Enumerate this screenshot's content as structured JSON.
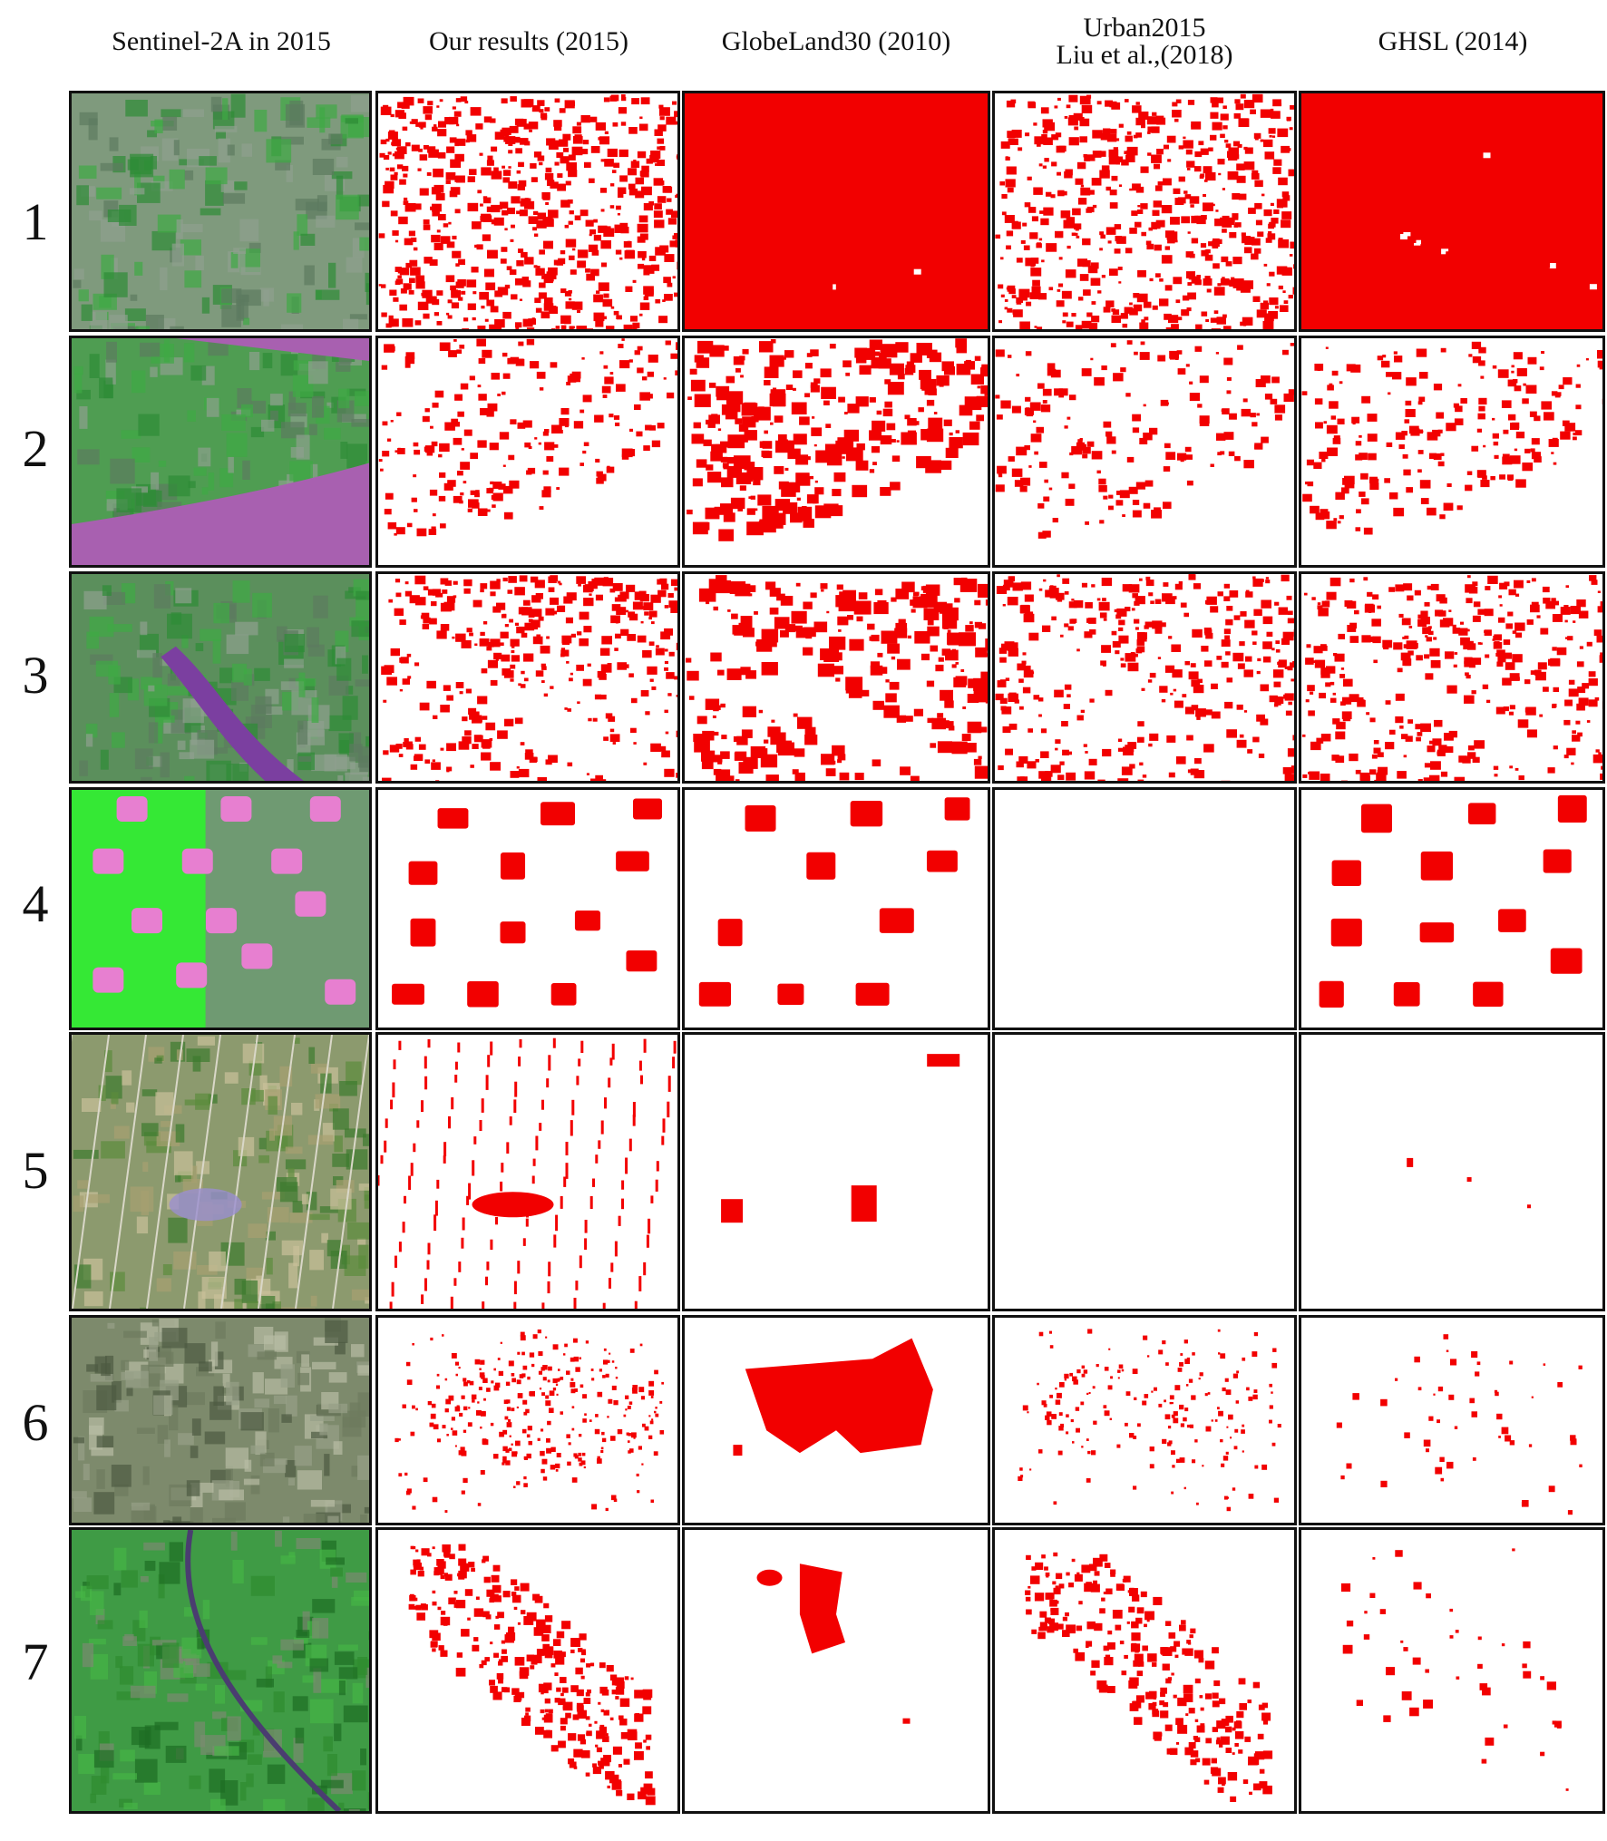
{
  "figure": {
    "column_headers": [
      "Sentinel-2A in 2015",
      "Our results (2015)",
      "GlobeLand30 (2010)",
      "Urban2015",
      "Liu et al.,(2018)",
      "GHSL (2014)"
    ],
    "row_labels": [
      "1",
      "2",
      "3",
      "4",
      "5",
      "6",
      "7"
    ],
    "colors": {
      "urban": "#f20000",
      "background": "#ffffff",
      "border": "#111111",
      "vegetation": "#3f8f3f",
      "bright_vegetation": "#35e835",
      "water": "#a860b0",
      "urban_fabric": "#8a9a88"
    }
  }
}
